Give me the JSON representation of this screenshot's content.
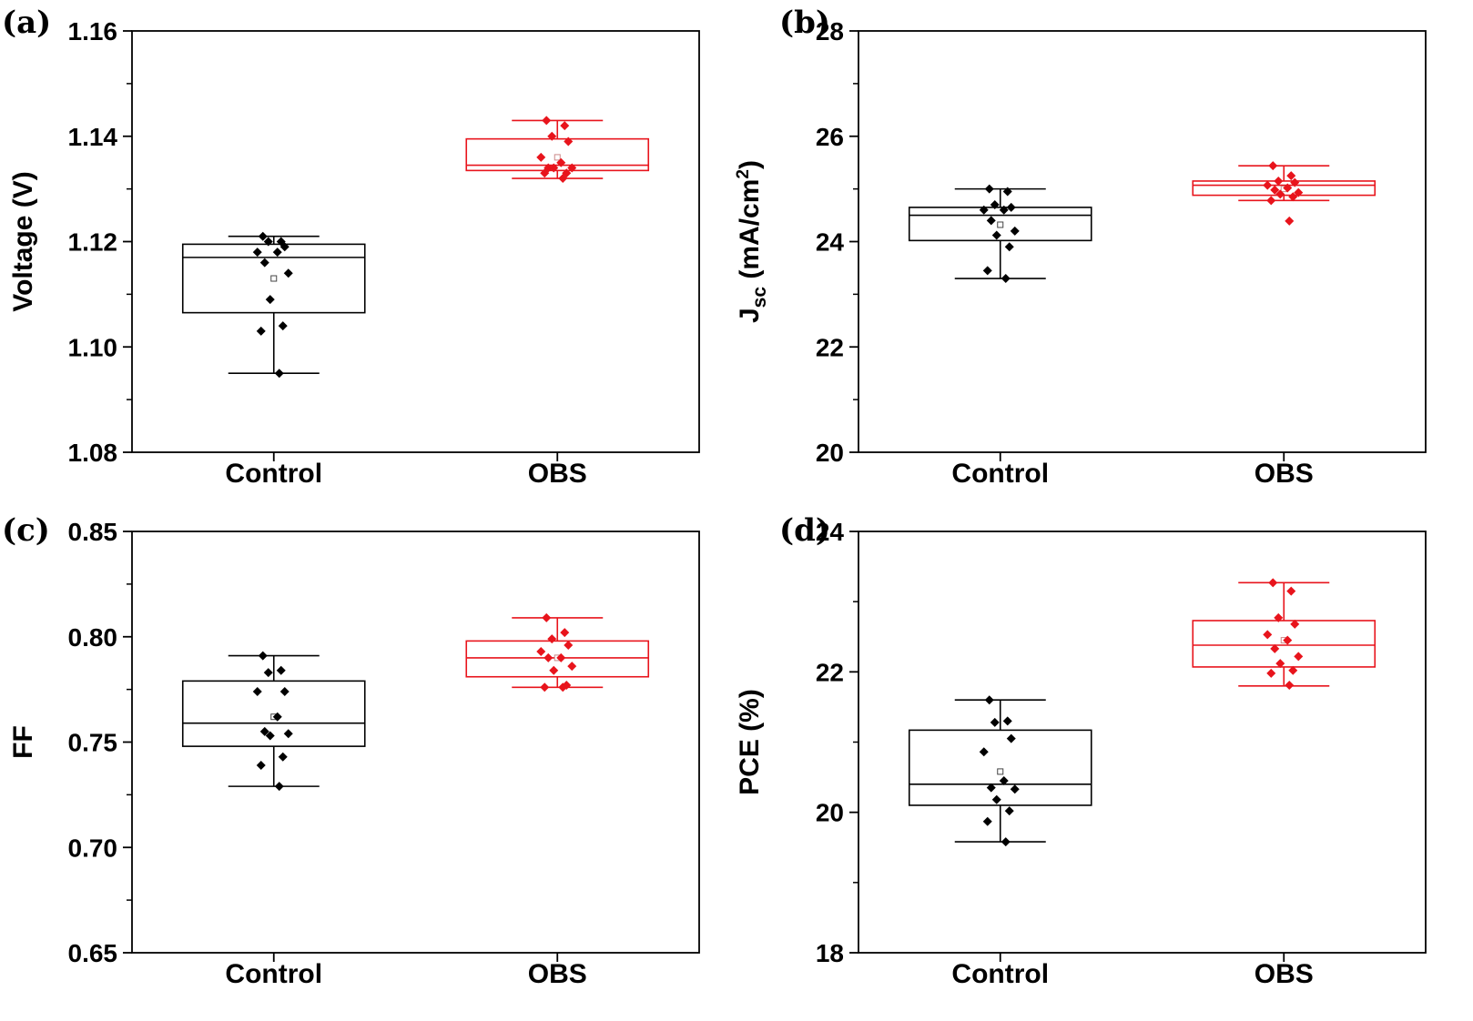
{
  "colors": {
    "control": "#000000",
    "obs": "#e8141c",
    "axis": "#000000"
  },
  "chart_data": [
    {
      "id": "a",
      "panel_label": "(a)",
      "type": "box",
      "categories": [
        "Control",
        "OBS"
      ],
      "ylabel": "Voltage (V)",
      "ylim": [
        1.08,
        1.16
      ],
      "yticks": [
        1.08,
        1.1,
        1.12,
        1.14,
        1.16
      ],
      "ytick_labels": [
        "1.08",
        "1.10",
        "1.12",
        "1.14",
        "1.16"
      ],
      "series": [
        {
          "name": "Control",
          "whisker_low": 1.095,
          "q1": 1.1065,
          "median": 1.117,
          "q3": 1.1195,
          "whisker_high": 1.121,
          "mean": 1.113,
          "points": [
            1.121,
            1.12,
            1.12,
            1.119,
            1.118,
            1.118,
            1.116,
            1.114,
            1.109,
            1.104,
            1.103,
            1.095
          ]
        },
        {
          "name": "OBS",
          "whisker_low": 1.132,
          "q1": 1.1335,
          "median": 1.1345,
          "q3": 1.1395,
          "whisker_high": 1.143,
          "mean": 1.136,
          "points": [
            1.143,
            1.142,
            1.14,
            1.139,
            1.136,
            1.135,
            1.134,
            1.134,
            1.134,
            1.133,
            1.133,
            1.132
          ]
        }
      ]
    },
    {
      "id": "b",
      "panel_label": "(b)",
      "type": "box",
      "categories": [
        "Control",
        "OBS"
      ],
      "ylabel": "J_sc (mA/cm^2)",
      "ylabel_parts": {
        "main": "J",
        "sub": "sc",
        "mid": " (mA/cm",
        "sup": "2",
        "end": ")"
      },
      "ylim": [
        20,
        28
      ],
      "yticks": [
        20,
        22,
        24,
        26,
        28
      ],
      "ytick_labels": [
        "20",
        "22",
        "24",
        "26",
        "28"
      ],
      "series": [
        {
          "name": "Control",
          "whisker_low": 23.3,
          "q1": 24.02,
          "median": 24.5,
          "q3": 24.65,
          "whisker_high": 25.0,
          "mean": 24.32,
          "points": [
            25.0,
            24.95,
            24.7,
            24.65,
            24.6,
            24.6,
            24.4,
            24.2,
            24.12,
            23.9,
            23.45,
            23.3
          ]
        },
        {
          "name": "OBS",
          "whisker_low": 24.78,
          "q1": 24.88,
          "median": 25.07,
          "q3": 25.15,
          "whisker_high": 25.44,
          "mean": 25.0,
          "points": [
            25.44,
            25.25,
            25.15,
            25.12,
            25.07,
            25.02,
            24.98,
            24.93,
            24.9,
            24.85,
            24.78,
            24.39
          ]
        }
      ]
    },
    {
      "id": "c",
      "panel_label": "(c)",
      "type": "box",
      "categories": [
        "Control",
        "OBS"
      ],
      "ylabel": "FF",
      "ylim": [
        0.65,
        0.85
      ],
      "yticks": [
        0.65,
        0.7,
        0.75,
        0.8,
        0.85
      ],
      "ytick_labels": [
        "0.65",
        "0.70",
        "0.75",
        "0.80",
        "0.85"
      ],
      "series": [
        {
          "name": "Control",
          "whisker_low": 0.729,
          "q1": 0.748,
          "median": 0.759,
          "q3": 0.779,
          "whisker_high": 0.791,
          "mean": 0.762,
          "points": [
            0.791,
            0.784,
            0.783,
            0.774,
            0.774,
            0.762,
            0.755,
            0.754,
            0.753,
            0.743,
            0.739,
            0.729
          ]
        },
        {
          "name": "OBS",
          "whisker_low": 0.776,
          "q1": 0.781,
          "median": 0.79,
          "q3": 0.798,
          "whisker_high": 0.809,
          "mean": 0.79,
          "points": [
            0.809,
            0.802,
            0.799,
            0.796,
            0.793,
            0.79,
            0.79,
            0.786,
            0.784,
            0.777,
            0.776,
            0.776
          ]
        }
      ]
    },
    {
      "id": "d",
      "panel_label": "(d)",
      "type": "box",
      "categories": [
        "Control",
        "OBS"
      ],
      "ylabel": "PCE (%)",
      "ylim": [
        18,
        24
      ],
      "yticks": [
        18,
        20,
        22,
        24
      ],
      "ytick_labels": [
        "18",
        "20",
        "22",
        "24"
      ],
      "series": [
        {
          "name": "Control",
          "whisker_low": 19.58,
          "q1": 20.1,
          "median": 20.4,
          "q3": 21.17,
          "whisker_high": 21.6,
          "mean": 20.58,
          "points": [
            21.6,
            21.3,
            21.28,
            21.05,
            20.86,
            20.45,
            20.35,
            20.33,
            20.18,
            20.02,
            19.87,
            19.58
          ]
        },
        {
          "name": "OBS",
          "whisker_low": 21.8,
          "q1": 22.07,
          "median": 22.38,
          "q3": 22.73,
          "whisker_high": 23.27,
          "mean": 22.45,
          "points": [
            23.27,
            23.15,
            22.77,
            22.68,
            22.53,
            22.45,
            22.33,
            22.22,
            22.12,
            22.02,
            21.98,
            21.81
          ]
        }
      ]
    }
  ]
}
